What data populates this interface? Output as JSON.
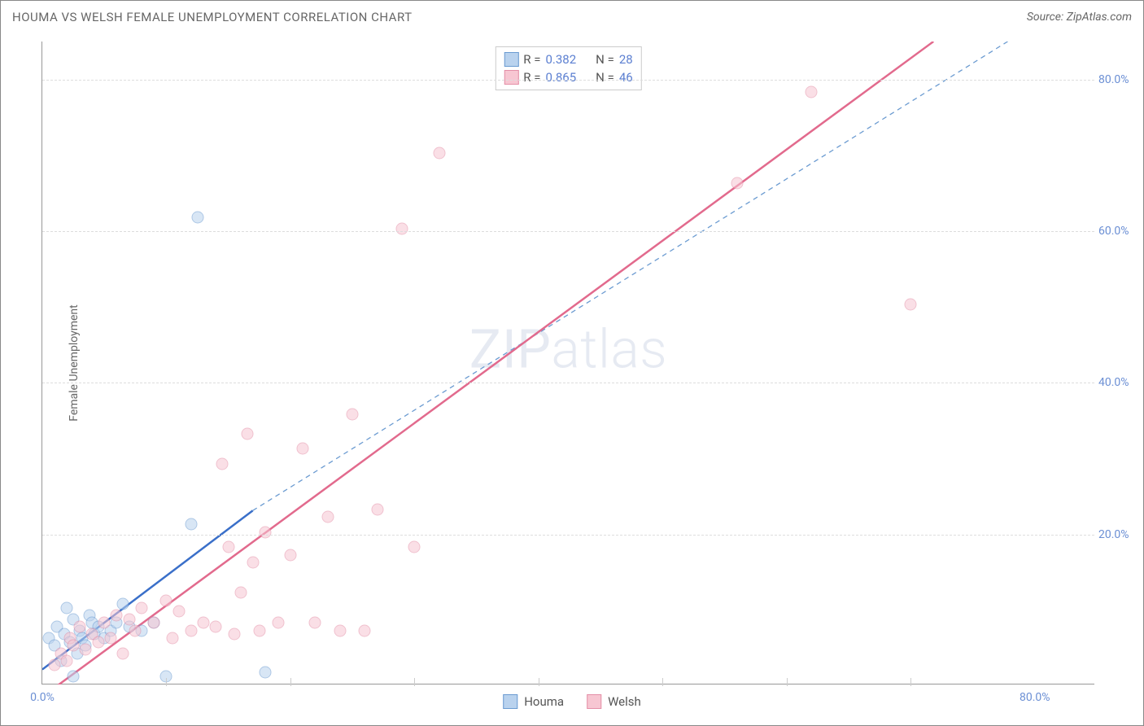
{
  "title": "HOUMA VS WELSH FEMALE UNEMPLOYMENT CORRELATION CHART",
  "source": "Source: ZipAtlas.com",
  "ylabel": "Female Unemployment",
  "watermark_zip": "ZIP",
  "watermark_atlas": "atlas",
  "chart": {
    "type": "scatter",
    "xlim": [
      0,
      85
    ],
    "ylim": [
      0,
      85
    ],
    "xticks": [
      {
        "v": 0,
        "label": "0.0%"
      },
      {
        "v": 80,
        "label": "80.0%"
      }
    ],
    "yticks": [
      {
        "v": 20,
        "label": "20.0%"
      },
      {
        "v": 40,
        "label": "40.0%"
      },
      {
        "v": 60,
        "label": "60.0%"
      },
      {
        "v": 80,
        "label": "80.0%"
      }
    ],
    "xgrid_minor": [
      10,
      20,
      30,
      40,
      50,
      60,
      70
    ],
    "background_color": "#ffffff",
    "grid_color": "#dddddd",
    "marker_radius": 7.5,
    "marker_opacity": 0.55,
    "series": [
      {
        "name": "Houma",
        "fill": "#b9d2ee",
        "stroke": "#6b9bd1",
        "r_value": "0.382",
        "n_value": "28",
        "trend": {
          "x1": 0,
          "y1": 2,
          "x2": 17,
          "y2": 23,
          "color": "#3a6fc9",
          "dash": false,
          "width": 2.5
        },
        "trend_ext": {
          "x1": 17,
          "y1": 23,
          "x2": 78,
          "y2": 85,
          "color": "#6b9bd1",
          "dash": true,
          "width": 1.3
        },
        "points": [
          [
            0.5,
            6
          ],
          [
            1,
            5
          ],
          [
            1.2,
            7.5
          ],
          [
            1.5,
            3
          ],
          [
            1.8,
            6.5
          ],
          [
            2,
            10
          ],
          [
            2.2,
            5.5
          ],
          [
            2.5,
            8.5
          ],
          [
            2.8,
            4
          ],
          [
            3,
            7
          ],
          [
            3.2,
            6
          ],
          [
            3.5,
            5
          ],
          [
            3.8,
            9
          ],
          [
            4,
            8
          ],
          [
            4.2,
            6.5
          ],
          [
            4.5,
            7.5
          ],
          [
            5,
            6
          ],
          [
            5.5,
            7
          ],
          [
            6,
            8
          ],
          [
            6.5,
            10.5
          ],
          [
            7,
            7.5
          ],
          [
            8,
            7
          ],
          [
            9,
            8
          ],
          [
            2.5,
            1
          ],
          [
            10,
            1
          ],
          [
            12,
            21
          ],
          [
            12.5,
            61.5
          ],
          [
            18,
            1.5
          ]
        ]
      },
      {
        "name": "Welsh",
        "fill": "#f7c6d2",
        "stroke": "#e48fa7",
        "r_value": "0.865",
        "n_value": "46",
        "trend": {
          "x1": 0.5,
          "y1": -1,
          "x2": 72,
          "y2": 85,
          "color": "#e26a8d",
          "dash": false,
          "width": 2.5
        },
        "trend_ext": null,
        "points": [
          [
            1,
            2.5
          ],
          [
            1.5,
            4
          ],
          [
            2,
            3
          ],
          [
            2.2,
            6
          ],
          [
            2.5,
            5
          ],
          [
            3,
            7.5
          ],
          [
            3.5,
            4.5
          ],
          [
            4,
            6.5
          ],
          [
            4.5,
            5.5
          ],
          [
            5,
            8
          ],
          [
            5.5,
            6
          ],
          [
            6,
            9
          ],
          [
            6.5,
            4
          ],
          [
            7,
            8.5
          ],
          [
            7.5,
            7
          ],
          [
            8,
            10
          ],
          [
            9,
            8
          ],
          [
            10,
            11
          ],
          [
            10.5,
            6
          ],
          [
            11,
            9.5
          ],
          [
            12,
            7
          ],
          [
            13,
            8
          ],
          [
            14,
            7.5
          ],
          [
            15,
            18
          ],
          [
            15.5,
            6.5
          ],
          [
            16,
            12
          ],
          [
            17,
            16
          ],
          [
            17.5,
            7
          ],
          [
            18,
            20
          ],
          [
            19,
            8
          ],
          [
            20,
            17
          ],
          [
            21,
            31
          ],
          [
            22,
            8
          ],
          [
            23,
            22
          ],
          [
            24,
            7
          ],
          [
            25,
            35.5
          ],
          [
            27,
            23
          ],
          [
            29,
            60
          ],
          [
            30,
            18
          ],
          [
            32,
            70
          ],
          [
            56,
            66
          ],
          [
            62,
            78
          ],
          [
            70,
            50
          ],
          [
            14.5,
            29
          ],
          [
            16.5,
            33
          ],
          [
            26,
            7
          ]
        ]
      }
    ]
  },
  "legend": {
    "stats": [
      {
        "swatch_fill": "#b9d2ee",
        "swatch_stroke": "#6b9bd1",
        "r_label": "R =",
        "r_val": "0.382",
        "n_label": "N =",
        "n_val": "28"
      },
      {
        "swatch_fill": "#f7c6d2",
        "swatch_stroke": "#e48fa7",
        "r_label": "R =",
        "r_val": "0.865",
        "n_label": "N =",
        "n_val": "46"
      }
    ],
    "bottom": [
      {
        "swatch_fill": "#b9d2ee",
        "swatch_stroke": "#6b9bd1",
        "label": "Houma"
      },
      {
        "swatch_fill": "#f7c6d2",
        "swatch_stroke": "#e48fa7",
        "label": "Welsh"
      }
    ]
  }
}
